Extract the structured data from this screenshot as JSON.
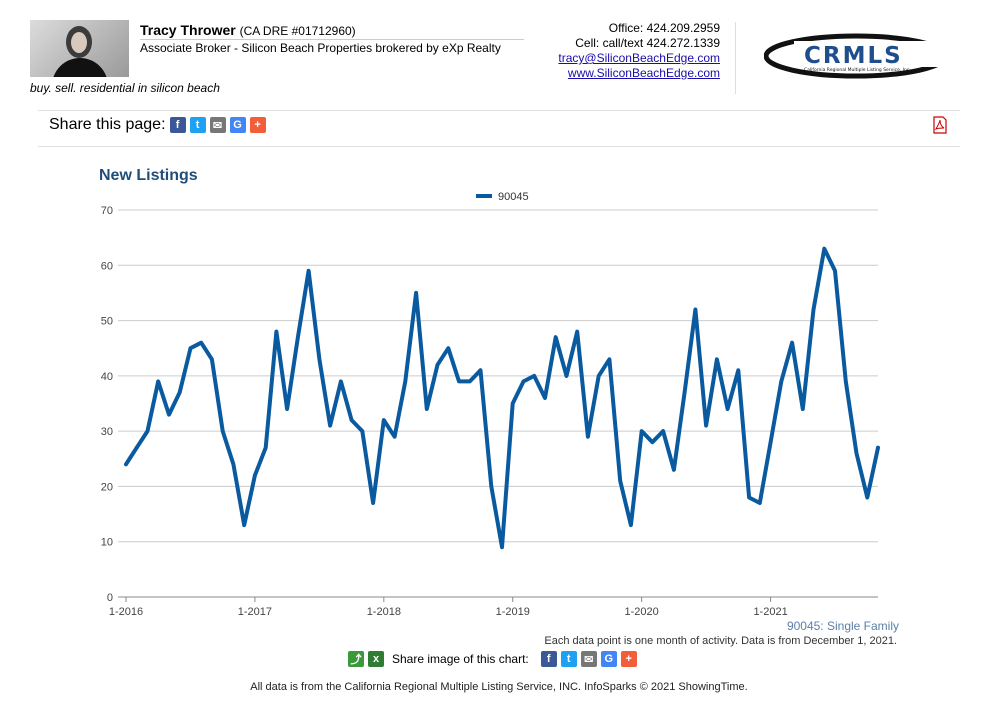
{
  "agent": {
    "name": "Tracy Thrower",
    "license": "(CA DRE #01712960)",
    "title": "Associate Broker - Silicon Beach Properties brokered by eXp Realty",
    "tagline": "buy. sell. residential in silicon beach",
    "office": "Office: 424.209.2959",
    "cell": "Cell: call/text 424.272.1339",
    "email": "tracy@SiliconBeachEdge.com",
    "website": "www.SiliconBeachEdge.com"
  },
  "logo": {
    "text": "CRMLS",
    "subtext": "California Regional Multiple Listing Service, Inc.",
    "color": "#1f4e8c"
  },
  "share": {
    "label": "Share this page:"
  },
  "chart_data": {
    "type": "line",
    "title": "New Listings",
    "legend_position": "top-center",
    "series": [
      {
        "name": "90045",
        "color": "#0a5aa0",
        "values": [
          24,
          27,
          30,
          39,
          33,
          37,
          45,
          46,
          43,
          30,
          24,
          13,
          22,
          27,
          48,
          34,
          47,
          59,
          43,
          31,
          39,
          32,
          30,
          17,
          32,
          29,
          39,
          55,
          34,
          42,
          45,
          39,
          39,
          41,
          20,
          9,
          35,
          39,
          40,
          36,
          47,
          40,
          48,
          29,
          40,
          43,
          21,
          13,
          30,
          28,
          30,
          23,
          37,
          52,
          31,
          43,
          34,
          41,
          18,
          17,
          28,
          39,
          46,
          34,
          52,
          63,
          59,
          39,
          26,
          18,
          27
        ]
      }
    ],
    "x_start": "2016-01",
    "x_ticks": [
      "1-2016",
      "1-2017",
      "1-2018",
      "1-2019",
      "1-2020",
      "1-2021"
    ],
    "y_ticks": [
      "0",
      "10",
      "20",
      "30",
      "40",
      "50",
      "60",
      "70"
    ],
    "ylim": [
      0,
      70
    ],
    "grid": true
  },
  "source_label": "90045: Single Family",
  "note": "Each data point is one month of activity. Data is from December 1, 2021.",
  "share_chart_label": "Share image of this chart:",
  "footer": "All data is from the California Regional Multiple Listing Service, INC. InfoSparks © 2021 ShowingTime."
}
